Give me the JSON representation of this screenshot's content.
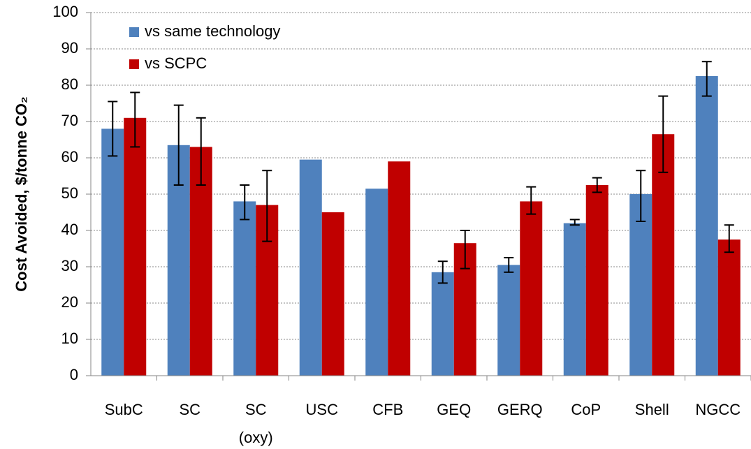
{
  "chart_data": {
    "type": "bar",
    "y_label": "Cost Avoided, $/tonne CO₂",
    "categories": [
      "SubC",
      "SC",
      "SC\n(oxy)",
      "USC",
      "CFB",
      "GEQ",
      "GERQ",
      "CoP",
      "Shell",
      "NGCC"
    ],
    "series": [
      {
        "name": "vs same technology",
        "color": "#4f81bd",
        "values": [
          68,
          63.5,
          48,
          59.5,
          51.5,
          28.5,
          30.5,
          42,
          50,
          82.5
        ],
        "lower": [
          60.5,
          52.5,
          43,
          null,
          null,
          25.5,
          28.5,
          41.5,
          42.5,
          77
        ],
        "upper": [
          75.5,
          74.5,
          52.5,
          null,
          null,
          31.5,
          32.5,
          43,
          56.5,
          86.5
        ]
      },
      {
        "name": "vs SCPC",
        "color": "#c00000",
        "values": [
          71,
          63,
          47,
          45,
          59,
          36.5,
          48,
          52.5,
          66.5,
          37.5
        ],
        "lower": [
          63,
          52.5,
          37,
          null,
          null,
          29.5,
          44.5,
          50.5,
          56,
          34
        ],
        "upper": [
          78,
          71,
          56.5,
          null,
          null,
          40,
          52,
          54.5,
          77,
          41.5
        ]
      }
    ],
    "ylim": [
      0,
      100
    ],
    "yticks": [
      0,
      10,
      20,
      30,
      40,
      50,
      60,
      70,
      80,
      90,
      100
    ],
    "grid": true,
    "legend": "top-left"
  }
}
